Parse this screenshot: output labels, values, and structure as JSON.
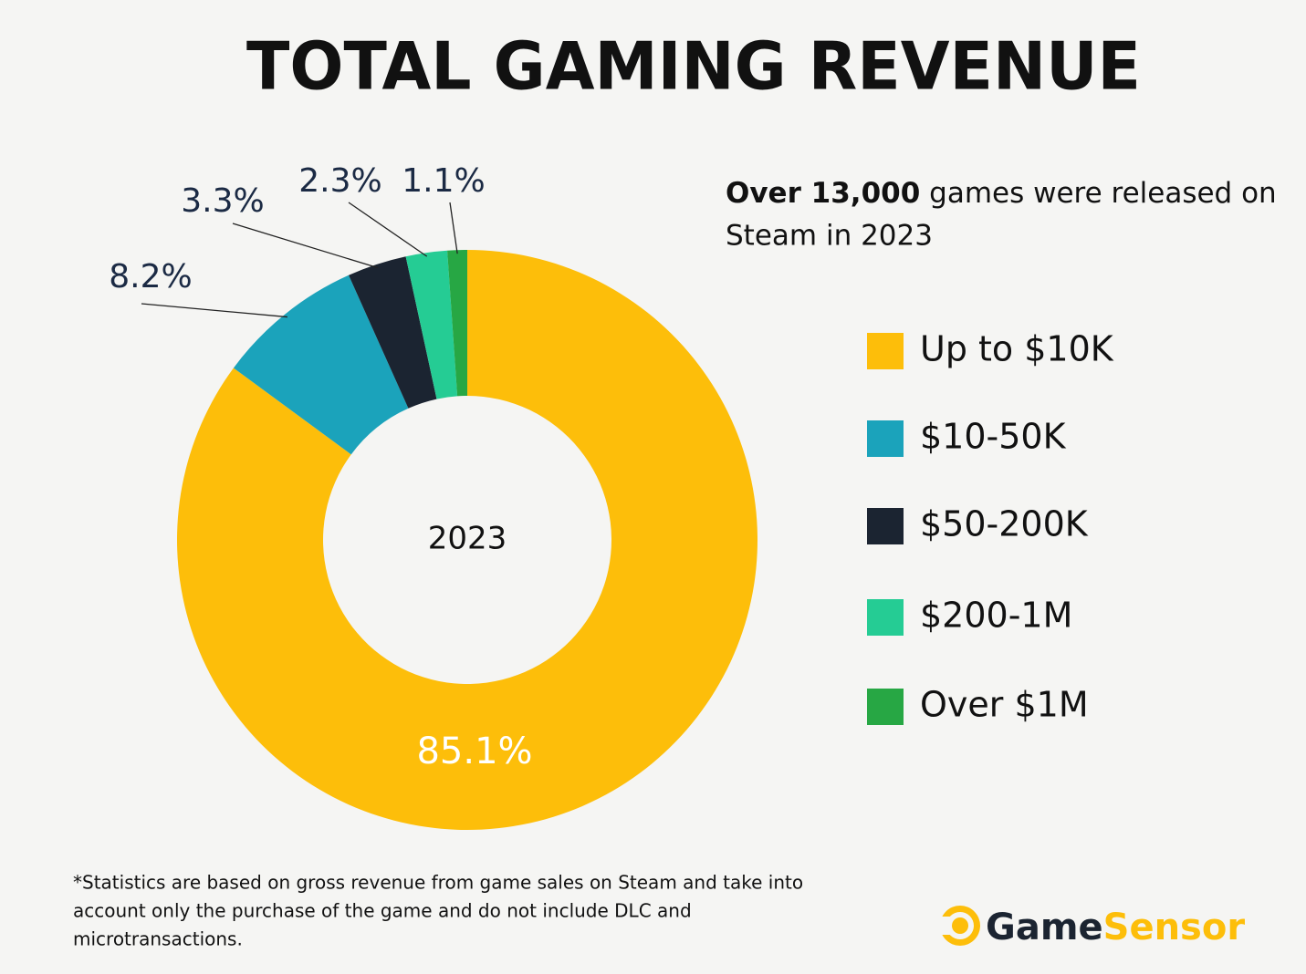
{
  "chart_data": {
    "type": "donut",
    "title": "TOTAL GAMING REVENUE",
    "center_label": "2023",
    "categories": [
      "Up to $10K",
      "$10-50K",
      "$50-200K",
      "$200-1M",
      "Over $1M"
    ],
    "values": [
      85.1,
      8.2,
      3.3,
      2.3,
      1.1
    ],
    "value_labels": [
      "85.1%",
      "8.2%",
      "3.3%",
      "2.3%",
      "1.1%"
    ],
    "colors": [
      "#fdbe0a",
      "#1ba3bb",
      "#1b2431",
      "#25cc94",
      "#27a744"
    ],
    "legend": "right"
  },
  "note": {
    "bold": "Over 13,000",
    "line1_rest": " games were released on",
    "line2": "Steam in 2023"
  },
  "footnote": [
    "*Statistics are based on gross revenue from game sales on Steam and take into",
    "account only the purchase of the game and do not include DLC and",
    "microtransactions."
  ],
  "logo": {
    "part1": "Game",
    "part2": "Sensor"
  }
}
